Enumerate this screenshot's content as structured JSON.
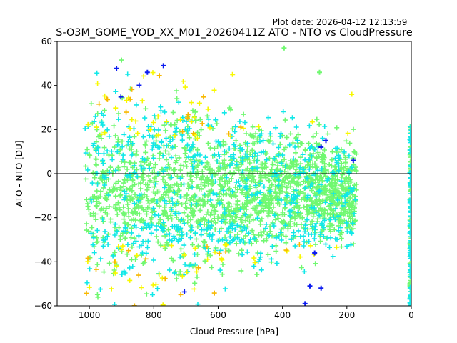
{
  "plot_date": "Plot date: 2026-04-12 12:13:59",
  "chart_data": {
    "type": "scatter",
    "title": "S-O3M_GOME_VOD_XX_M01_20260411Z ATO - NTO vs CloudPressure",
    "xlabel": "Cloud Pressure [hPa]",
    "ylabel": "ATO - NTO [DU]",
    "xlim": [
      1100,
      0
    ],
    "ylim": [
      -60,
      60
    ],
    "xticks": [
      1000,
      800,
      600,
      400,
      200,
      0
    ],
    "yticks": [
      -60,
      -40,
      -20,
      0,
      20,
      40,
      60
    ],
    "reference_line_y": 0,
    "marker": "+",
    "grid": false,
    "colormap_colors": {
      "blue": "#0c1cf0",
      "cyan": "#10e8e8",
      "green": "#70f870",
      "yellow": "#f8f800",
      "orange": "#f8b800"
    },
    "cloud_description": "Dense cloud of points spanning cloud pressure ~1010 to ~170 hPa; core density centred near -8 DU, spread roughly -60 to +60 DU near 1000 hPa narrowing to about -30 to +20 DU near 200 hPa; additional vertical strip of points at 0 hPa.",
    "cloud": {
      "x_min": 170,
      "x_max": 1015,
      "center_y": -8,
      "spread_at_1000": 55,
      "spread_at_200": 25,
      "strip_x": 0,
      "strip_y_range": [
        -60,
        23
      ]
    },
    "sample_points": [
      {
        "x": 770,
        "y": 49,
        "c": "blue"
      },
      {
        "x": 820,
        "y": 46,
        "c": "blue"
      },
      {
        "x": 300,
        "y": -36,
        "c": "blue"
      },
      {
        "x": 280,
        "y": -52,
        "c": "blue"
      },
      {
        "x": 315,
        "y": -51,
        "c": "blue"
      },
      {
        "x": 330,
        "y": -59,
        "c": "blue"
      },
      {
        "x": 180,
        "y": 6,
        "c": "blue"
      },
      {
        "x": 265,
        "y": 15,
        "c": "blue"
      },
      {
        "x": 280,
        "y": 12,
        "c": "blue"
      },
      {
        "x": 185,
        "y": 36,
        "c": "yellow"
      },
      {
        "x": 285,
        "y": 46,
        "c": "green"
      },
      {
        "x": 395,
        "y": 57,
        "c": "green"
      },
      {
        "x": 860,
        "y": -60,
        "c": "orange"
      },
      {
        "x": 555,
        "y": 45,
        "c": "yellow"
      }
    ]
  }
}
